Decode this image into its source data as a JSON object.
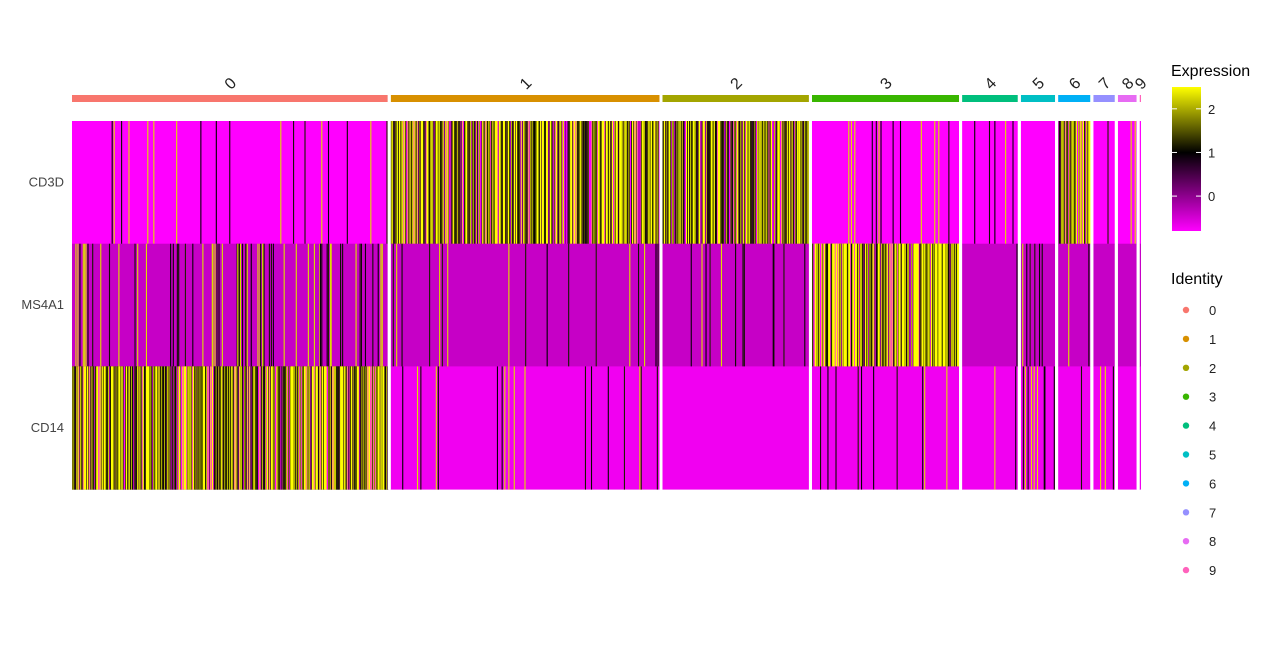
{
  "chart_data": {
    "type": "heatmap",
    "genes": [
      "CD3D",
      "MS4A1",
      "CD14"
    ],
    "clusters": [
      {
        "label": "0",
        "color": "#F8766D",
        "cells": 470
      },
      {
        "label": "1",
        "color": "#D89000",
        "cells": 400
      },
      {
        "label": "2",
        "color": "#A3A500",
        "cells": 218
      },
      {
        "label": "3",
        "color": "#39B600",
        "cells": 219
      },
      {
        "label": "4",
        "color": "#00BF7D",
        "cells": 83
      },
      {
        "label": "5",
        "color": "#00BFC4",
        "cells": 51
      },
      {
        "label": "6",
        "color": "#00B0F6",
        "cells": 48
      },
      {
        "label": "7",
        "color": "#9590FF",
        "cells": 32
      },
      {
        "label": "8",
        "color": "#E76BF3",
        "cells": 28
      },
      {
        "label": "9",
        "color": "#FF62BC",
        "cells": 2
      }
    ],
    "cluster_gene_profile": {
      "CD3D": {
        "base": [
          -0.9,
          1.3,
          1.2,
          -0.9,
          -0.9,
          -0.9,
          1.1,
          -0.9,
          -0.9,
          -0.9
        ],
        "hi_frac": [
          0.04,
          0.7,
          0.6,
          0.05,
          0.05,
          0.03,
          0.6,
          0.02,
          0.1,
          0.0
        ]
      },
      "MS4A1": {
        "base": [
          -0.4,
          -0.4,
          -0.4,
          2.3,
          -0.4,
          -0.4,
          -0.4,
          -0.4,
          -0.4,
          -0.4
        ],
        "hi_frac": [
          0.12,
          0.06,
          0.06,
          0.85,
          0.01,
          0.06,
          0.04,
          0.0,
          0.0,
          0.0
        ]
      },
      "CD14": {
        "base": [
          1.4,
          -0.7,
          -0.7,
          -0.7,
          -0.7,
          -0.7,
          -0.7,
          -0.7,
          -0.7,
          -0.7
        ],
        "hi_frac": [
          0.75,
          0.03,
          0.0,
          0.04,
          0.02,
          0.15,
          0.02,
          0.1,
          0.0,
          0.0
        ]
      }
    },
    "color_scale": {
      "title": "Expression",
      "low": "#FF00FF",
      "mid": "#000000",
      "high": "#FFFF00",
      "range": [
        -0.8,
        2.5
      ],
      "ticks": [
        0,
        1,
        2
      ]
    },
    "identity_legend": {
      "title": "Identity",
      "items": [
        "0",
        "1",
        "2",
        "3",
        "4",
        "5",
        "6",
        "7",
        "8",
        "9"
      ]
    }
  }
}
